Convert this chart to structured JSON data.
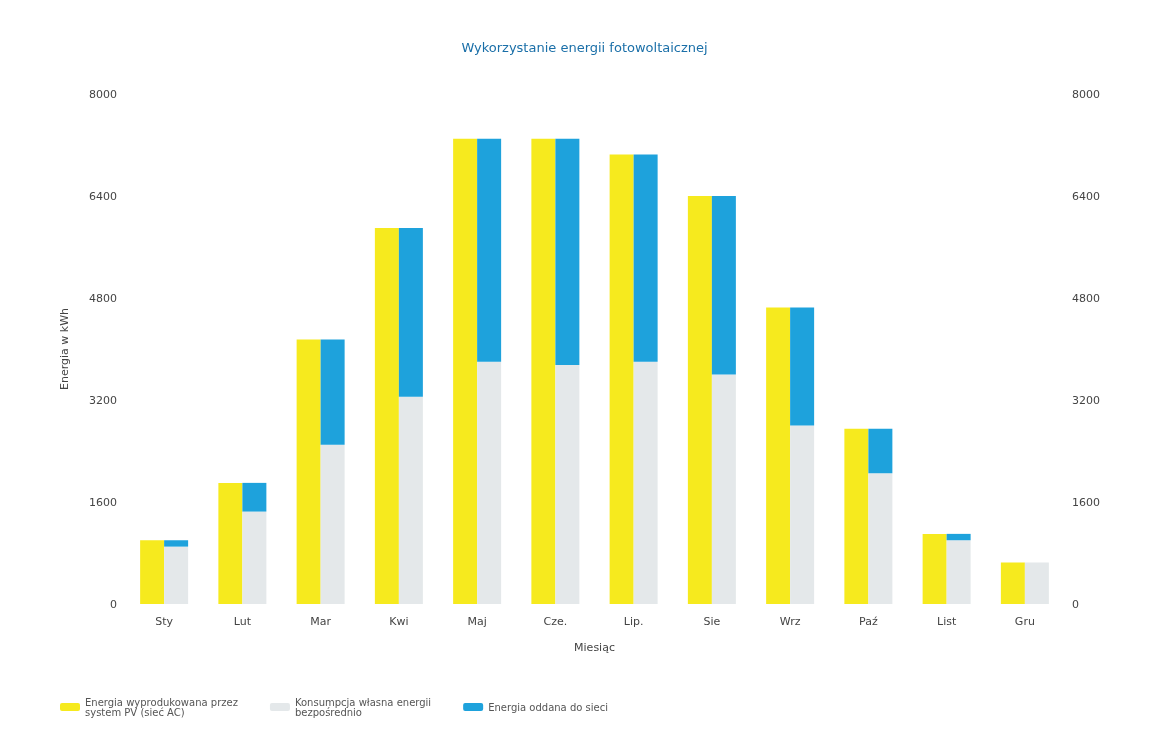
{
  "chart_data": {
    "type": "bar",
    "title": "Wykorzystanie energii fotowoltaicznej",
    "xlabel": "Miesiąc",
    "ylabel": "Energia w kWh",
    "categories": [
      "Sty",
      "Lut",
      "Mar",
      "Kwi",
      "Maj",
      "Cze.",
      "Lip.",
      "Sie",
      "Wrz",
      "Paź",
      "List",
      "Gru"
    ],
    "series": [
      {
        "name": "Energia wyprodukowana przez\nsystem PV (sieć AC)",
        "color": "#f6ea1e",
        "axis": "y2",
        "values": [
          1000,
          1900,
          4150,
          5900,
          7300,
          7300,
          7050,
          6400,
          4650,
          2750,
          1100,
          650
        ]
      },
      {
        "name": "Konsumpcja własna energii\nbezpośrednio",
        "color": "#e4e8ea",
        "values": [
          900,
          1450,
          2500,
          3250,
          3800,
          3750,
          3800,
          3600,
          2800,
          2050,
          1000,
          650
        ]
      },
      {
        "name": "Energia oddana do sieci",
        "color": "#1ea2dc",
        "values": [
          100,
          450,
          1650,
          2650,
          3500,
          3550,
          3250,
          2800,
          1850,
          700,
          100,
          null
        ]
      }
    ],
    "stacked": true,
    "ylim": [
      0,
      8000
    ],
    "yticks": [
      0,
      1600,
      3200,
      4800,
      6400,
      8000
    ],
    "y2lim": [
      0,
      8000
    ],
    "y2ticks": [
      0,
      1600,
      3200,
      4800,
      6400,
      8000
    ],
    "grid": false,
    "legend": "bottom left"
  }
}
